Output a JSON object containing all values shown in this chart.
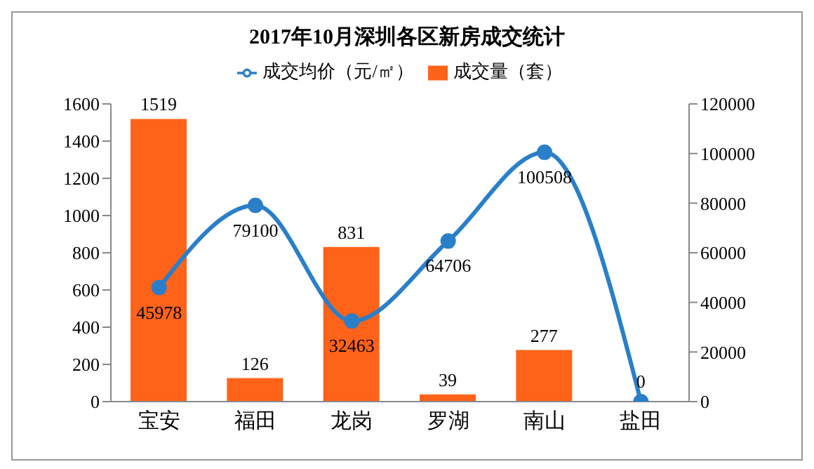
{
  "chart_data": {
    "type": "bar",
    "title": "2017年10月深圳各区新房成交统计",
    "categories": [
      "宝安",
      "福田",
      "龙岗",
      "罗湖",
      "南山",
      "盐田"
    ],
    "series": [
      {
        "name": "成交量（套）",
        "color": "#ff6319",
        "values": [
          1519,
          126,
          831,
          39,
          277,
          null
        ]
      },
      {
        "name": "成交均价（元/㎡）",
        "type": "line",
        "axis": "y2",
        "color": "#2a7fc8",
        "values": [
          45978,
          79100,
          32463,
          64706,
          100508,
          0
        ]
      }
    ],
    "ylim": [
      0,
      1600
    ],
    "yticks": [
      0,
      200,
      400,
      600,
      800,
      1000,
      1200,
      1400,
      1600
    ],
    "y2lim": [
      0,
      120000
    ],
    "y2ticks": [
      0,
      20000,
      40000,
      60000,
      80000,
      100000,
      120000
    ],
    "data_labels": true,
    "legend": "top",
    "marker": "circle",
    "line_style": "solid"
  }
}
